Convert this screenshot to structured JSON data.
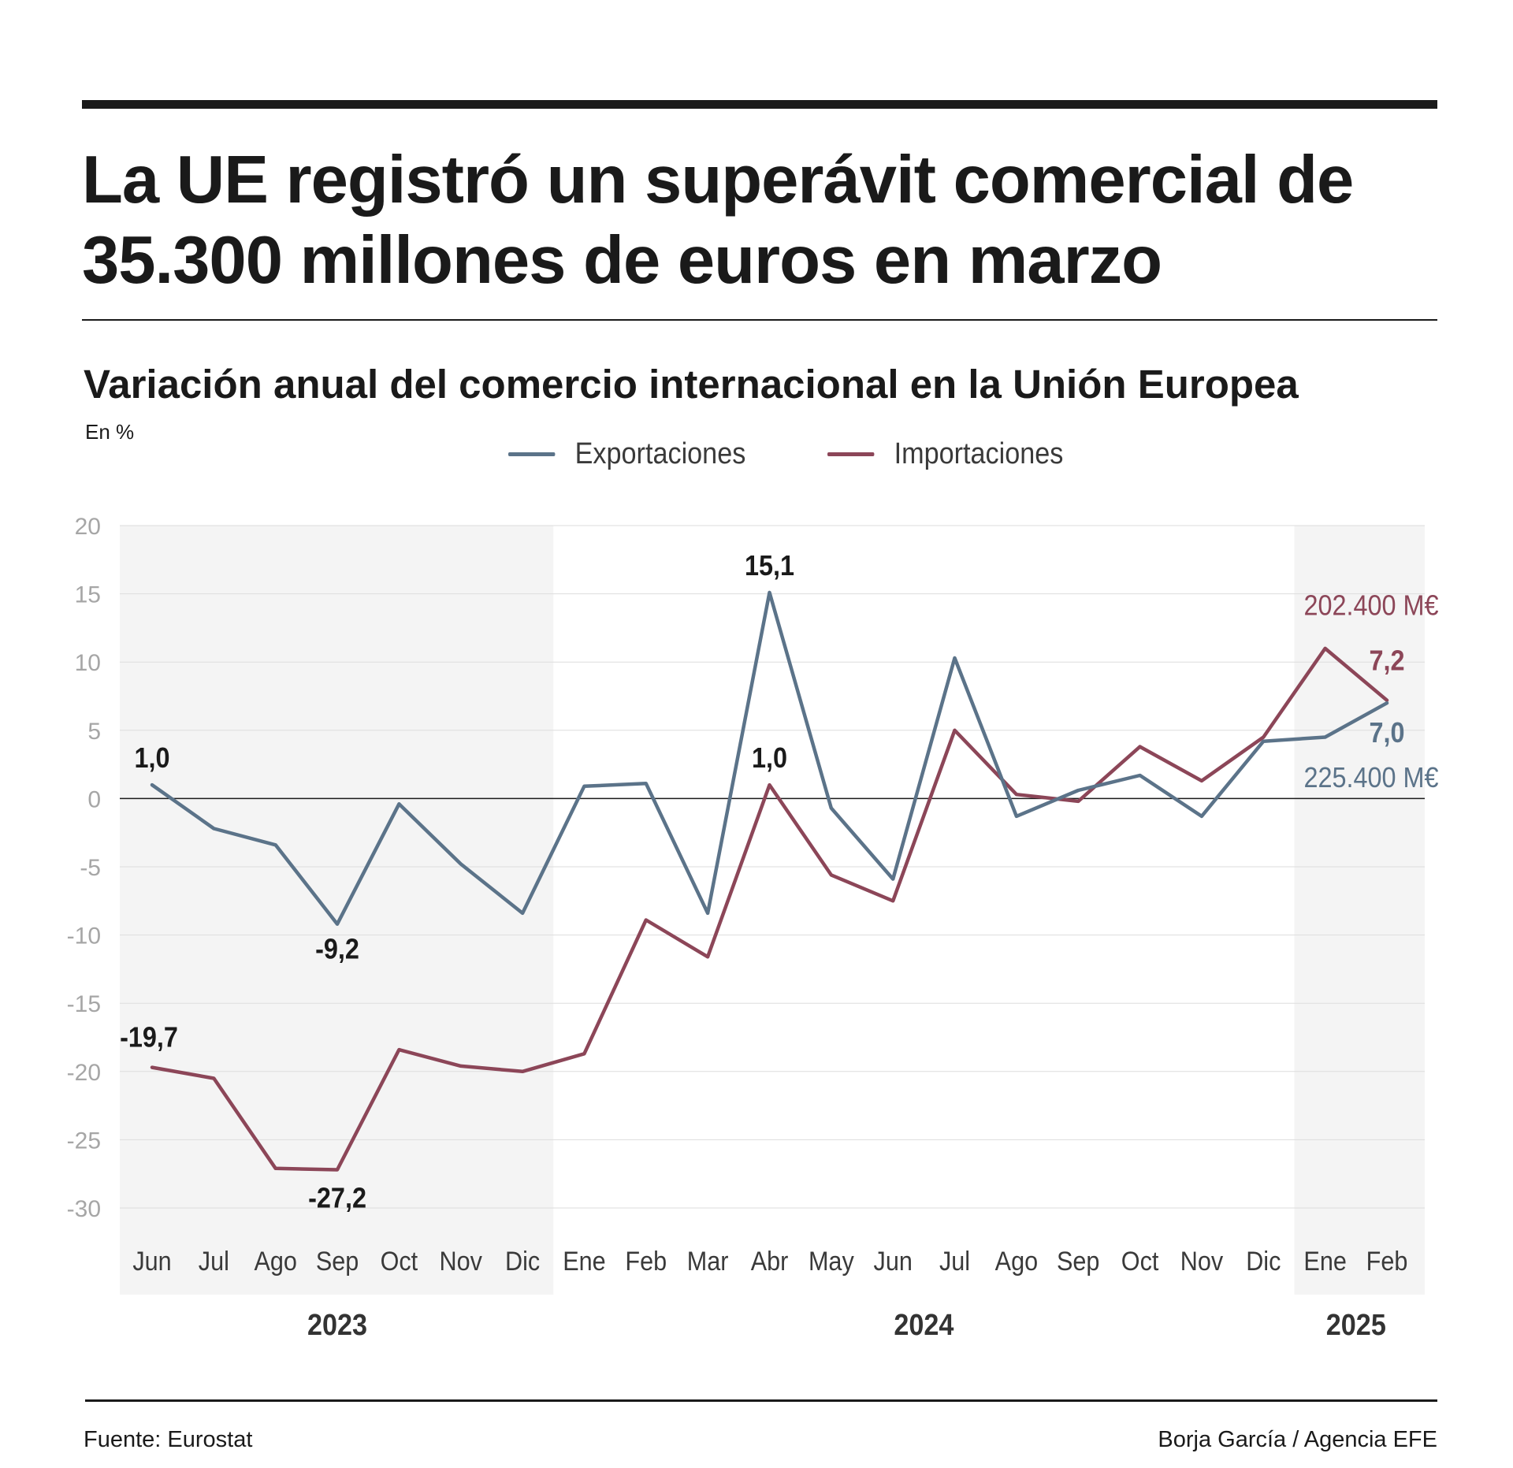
{
  "title": "La UE registró un superávit comercial de 35.300 millones de euros en marzo",
  "subtitle": "Variación anual del comercio internacional en la Unión Europea",
  "unit": "En %",
  "source": "Fuente: Eurostat",
  "credit": "Borja García / Agencia EFE",
  "colors": {
    "exports": "#5b7389",
    "imports": "#8c4658",
    "band": "#f4f4f4",
    "grid": "#dddddd",
    "axis": "#1a1a1a",
    "tick": "#a6a6a6"
  },
  "chart_data": {
    "type": "line",
    "title": "Variación anual del comercio internacional en la Unión Europea",
    "ylabel": "En %",
    "xlabel": "",
    "ylim": [
      -30,
      20
    ],
    "yticks": [
      20,
      15,
      10,
      5,
      0,
      -5,
      -10,
      -15,
      -20,
      -25,
      -30
    ],
    "ytick_labels": [
      "20",
      "15",
      "10",
      "5",
      "0",
      "-5",
      "-10",
      "-15",
      "-20",
      "-25",
      "-30"
    ],
    "grid": true,
    "categories": [
      "Jun",
      "Jul",
      "Ago",
      "Sep",
      "Oct",
      "Nov",
      "Dic",
      "Ene",
      "Feb",
      "Mar",
      "Abr",
      "May",
      "Jun",
      "Jul",
      "Ago",
      "Sep",
      "Oct",
      "Nov",
      "Dic",
      "Ene",
      "Feb"
    ],
    "years": [
      {
        "label": "2023",
        "start": 0,
        "end": 6,
        "shaded": true
      },
      {
        "label": "2024",
        "start": 7,
        "end": 18,
        "shaded": false
      },
      {
        "label": "2025",
        "start": 19,
        "end": 20,
        "shaded": true
      }
    ],
    "series": [
      {
        "name": "Exportaciones",
        "color": "#5b7389",
        "values": [
          1.0,
          -2.2,
          -3.4,
          -9.2,
          -0.4,
          -4.8,
          -8.4,
          0.9,
          1.1,
          -8.4,
          15.1,
          -0.7,
          -5.9,
          10.3,
          -1.3,
          0.6,
          1.7,
          -1.3,
          4.2,
          4.5,
          7.0
        ]
      },
      {
        "name": "Importaciones",
        "color": "#8c4658",
        "values": [
          -19.7,
          -20.5,
          -27.1,
          -27.2,
          -18.4,
          -19.6,
          -20.0,
          -18.7,
          -8.9,
          -11.6,
          1.0,
          -5.6,
          -7.5,
          5.0,
          0.3,
          -0.2,
          3.8,
          1.3,
          4.5,
          11.0,
          7.2
        ]
      }
    ],
    "annotations": [
      {
        "series": "Exportaciones",
        "index": 0,
        "text": "1,0",
        "bold": true,
        "color": "#1a1a1a"
      },
      {
        "series": "Exportaciones",
        "index": 3,
        "text": "-9,2",
        "bold": true,
        "color": "#1a1a1a"
      },
      {
        "series": "Exportaciones",
        "index": 10,
        "text": "15,1",
        "bold": true,
        "color": "#1a1a1a"
      },
      {
        "series": "Importaciones",
        "index": 10,
        "text": "1,0",
        "bold": true,
        "color": "#1a1a1a"
      },
      {
        "series": "Importaciones",
        "index": 0,
        "text": "-19,7",
        "bold": true,
        "color": "#1a1a1a"
      },
      {
        "series": "Importaciones",
        "index": 3,
        "text": "-27,2",
        "bold": true,
        "color": "#1a1a1a"
      },
      {
        "series": "Importaciones",
        "index": 20,
        "text": "7,2",
        "bold": true,
        "color": "#8c4658"
      },
      {
        "series": "Importaciones",
        "index": 20,
        "text": "202.400 M€",
        "bold": false,
        "color": "#8c4658"
      },
      {
        "series": "Exportaciones",
        "index": 20,
        "text": "7,0",
        "bold": true,
        "color": "#5b7389"
      },
      {
        "series": "Exportaciones",
        "index": 20,
        "text": "225.400 M€",
        "bold": false,
        "color": "#5b7389"
      }
    ]
  }
}
